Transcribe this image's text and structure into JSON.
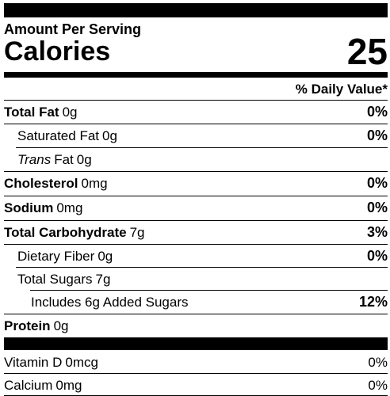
{
  "amount_per_serving": "Amount Per Serving",
  "calories": {
    "label": "Calories",
    "value": "25"
  },
  "daily_value_header": "% Daily Value*",
  "nutrients": [
    {
      "label": "Total Fat",
      "amount": "0g",
      "daily_value": "0%"
    },
    {
      "label": "Saturated Fat",
      "amount": "0g",
      "daily_value": "0%"
    },
    {
      "label_italic": "Trans",
      "label": "Fat",
      "amount": "0g"
    },
    {
      "label": "Cholesterol",
      "amount": "0mg",
      "daily_value": "0%"
    },
    {
      "label": "Sodium",
      "amount": "0mg",
      "daily_value": "0%"
    },
    {
      "label": "Total Carbohydrate",
      "amount": "7g",
      "daily_value": "3%"
    },
    {
      "label": "Dietary Fiber",
      "amount": "0g",
      "daily_value": "0%"
    },
    {
      "label": "Total Sugars",
      "amount": "7g"
    },
    {
      "label": "Includes 6g Added Sugars",
      "daily_value": "12%"
    },
    {
      "label": "Protein",
      "amount": "0g"
    }
  ],
  "vitamins": [
    {
      "label": "Vitamin D",
      "amount": "0mcg",
      "daily_value": "0%"
    },
    {
      "label": "Calcium",
      "amount": "0mg",
      "daily_value": "0%"
    }
  ]
}
